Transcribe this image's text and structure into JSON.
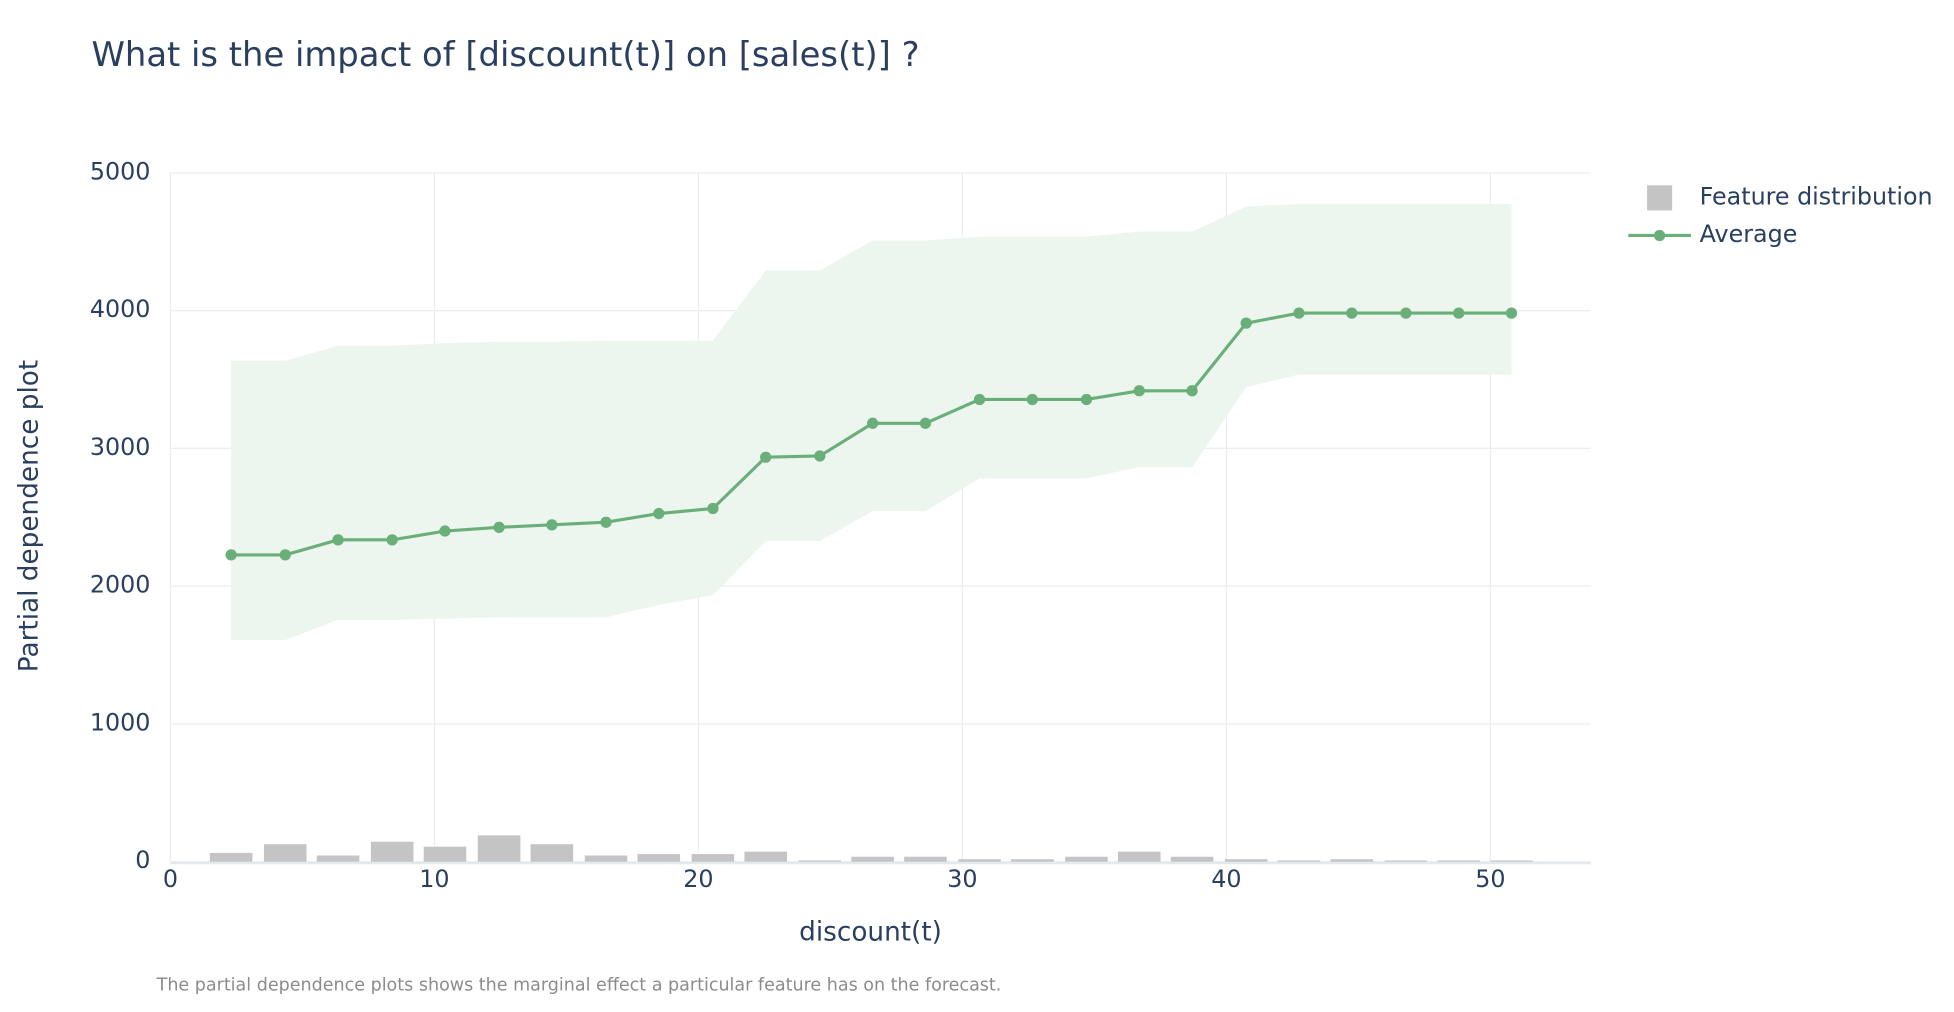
{
  "chart_data": {
    "type": "line",
    "title": "What is the impact of [discount(t)] on [sales(t)] ?",
    "x_label": "discount(t)",
    "y_label": "Partial dependence plot",
    "annotation": "The partial dependence plots shows the marginal effect a particular feature has on the forecast.",
    "xlim": [
      0,
      53.8
    ],
    "ylim": [
      0,
      5000
    ],
    "xticks": [
      0,
      10,
      20,
      30,
      40,
      50
    ],
    "yticks": [
      0,
      1000,
      2000,
      3000,
      4000,
      5000
    ],
    "grid": true,
    "legend": "top-right",
    "series": [
      {
        "name": "Feature distribution",
        "type": "bar",
        "color": "#c4c4c4",
        "x": [
          2.3,
          4.35,
          6.35,
          8.4,
          10.4,
          12.45,
          14.45,
          16.5,
          18.5,
          20.55,
          22.55,
          24.6,
          26.6,
          28.6,
          30.65,
          32.65,
          34.7,
          36.7,
          38.7,
          40.75,
          42.75,
          44.75,
          46.8,
          48.8,
          50.8
        ],
        "values": [
          64,
          127,
          45,
          145,
          109,
          191,
          127,
          45,
          55,
          55,
          73,
          9,
          36,
          36,
          18,
          18,
          36,
          73,
          36,
          18,
          9,
          18,
          9,
          9,
          9
        ]
      },
      {
        "name": "Average",
        "type": "line",
        "color": "#6aae79",
        "x": [
          2.3,
          4.35,
          6.35,
          8.4,
          10.4,
          12.45,
          14.45,
          16.5,
          18.5,
          20.55,
          22.55,
          24.6,
          26.6,
          28.6,
          30.65,
          32.65,
          34.7,
          36.7,
          38.7,
          40.75,
          42.75,
          44.75,
          46.8,
          48.8,
          50.8
        ],
        "values": [
          2227,
          2227,
          2336,
          2336,
          2400,
          2427,
          2445,
          2464,
          2527,
          2564,
          2936,
          2945,
          3182,
          3182,
          3355,
          3355,
          3355,
          3418,
          3418,
          3909,
          3982,
          3982,
          3982,
          3982,
          3982
        ]
      }
    ],
    "band": {
      "color": "#edf5ef",
      "upper": [
        3636,
        3636,
        3745,
        3745,
        3764,
        3773,
        3773,
        3782,
        3782,
        3782,
        4291,
        4291,
        4509,
        4509,
        4536,
        4536,
        4536,
        4573,
        4573,
        4755,
        4773,
        4773,
        4773,
        4773,
        4773
      ],
      "lower": [
        1609,
        1609,
        1755,
        1755,
        1764,
        1773,
        1773,
        1773,
        1864,
        1936,
        2327,
        2327,
        2545,
        2545,
        2782,
        2782,
        2782,
        2864,
        2864,
        3445,
        3536,
        3536,
        3536,
        3536,
        3536
      ]
    }
  }
}
